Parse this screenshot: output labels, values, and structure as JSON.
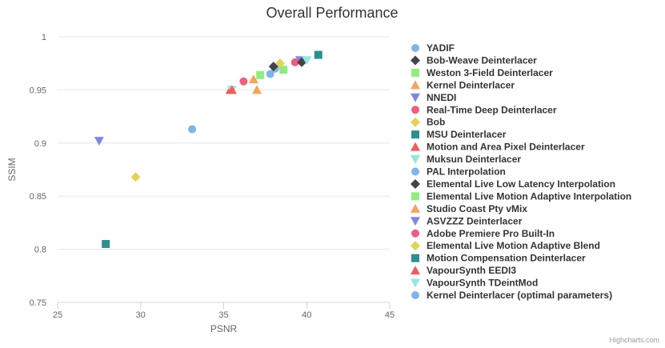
{
  "chart_data": {
    "type": "scatter",
    "title": "Overall Performance",
    "xlabel": "PSNR",
    "ylabel": "SSIM",
    "xlim": [
      25,
      45
    ],
    "ylim": [
      0.75,
      1
    ],
    "x_ticks": [
      "25",
      "30",
      "35",
      "40",
      "45"
    ],
    "y_ticks": [
      "0.75",
      "0.8",
      "0.85",
      "0.9",
      "0.95",
      "1"
    ],
    "grid": "horizontal",
    "legend_position": "right",
    "credits": "Highcharts.com",
    "series": [
      {
        "name": "YADIF",
        "color": "#7cb5ec",
        "symbol": "circle",
        "x": 38.1,
        "y": 0.97
      },
      {
        "name": "Bob-Weave Deinterlacer",
        "color": "#434348",
        "symbol": "diamond",
        "x": 38.0,
        "y": 0.972
      },
      {
        "name": "Weston 3-Field Deinterlacer",
        "color": "#90ed7d",
        "symbol": "square",
        "x": 38.6,
        "y": 0.969
      },
      {
        "name": "Kernel Deinterlacer",
        "color": "#f7a35c",
        "symbol": "triangle",
        "x": 37.0,
        "y": 0.95
      },
      {
        "name": "NNEDI",
        "color": "#8085e9",
        "symbol": "triangle-down",
        "x": 39.6,
        "y": 0.978
      },
      {
        "name": "Real-Time Deep Deinterlacer",
        "color": "#f15c80",
        "symbol": "circle",
        "x": 39.3,
        "y": 0.976
      },
      {
        "name": "Bob",
        "color": "#e4d354",
        "symbol": "diamond",
        "x": 38.4,
        "y": 0.975
      },
      {
        "name": "MSU Deinterlacer",
        "color": "#2b908f",
        "symbol": "square",
        "x": 40.7,
        "y": 0.983
      },
      {
        "name": "Motion and Area Pixel Deinterlacer",
        "color": "#f45b5b",
        "symbol": "triangle",
        "x": 35.4,
        "y": 0.95
      },
      {
        "name": "Muksun Deinterlacer",
        "color": "#91e8e1",
        "symbol": "triangle-down",
        "x": 35.5,
        "y": 0.95
      },
      {
        "name": "PAL Interpolation",
        "color": "#7cb5ec",
        "symbol": "circle",
        "x": 33.1,
        "y": 0.913
      },
      {
        "name": "Elemental Live Low Latency Interpolation",
        "color": "#434348",
        "symbol": "diamond",
        "x": 39.7,
        "y": 0.976
      },
      {
        "name": "Elemental Live Motion Adaptive Interpolation",
        "color": "#90ed7d",
        "symbol": "square",
        "x": 37.2,
        "y": 0.964
      },
      {
        "name": "Studio Coast Pty vMix",
        "color": "#f7a35c",
        "symbol": "triangle",
        "x": 36.8,
        "y": 0.96
      },
      {
        "name": "ASVZZZ Deinterlacer",
        "color": "#8085e9",
        "symbol": "triangle-down",
        "x": 27.5,
        "y": 0.902
      },
      {
        "name": "Adobe Premiere Pro Built-In",
        "color": "#f15c80",
        "symbol": "circle",
        "x": 36.2,
        "y": 0.958
      },
      {
        "name": "Elemental Live Motion Adaptive Blend",
        "color": "#e4d354",
        "symbol": "diamond",
        "x": 29.7,
        "y": 0.868
      },
      {
        "name": "Motion Compensation Deinterlacer",
        "color": "#2b908f",
        "symbol": "square",
        "x": 27.9,
        "y": 0.805
      },
      {
        "name": "VapourSynth EEDI3",
        "color": "#f45b5b",
        "symbol": "triangle",
        "x": 35.5,
        "y": 0.95
      },
      {
        "name": "VapourSynth TDeintMod",
        "color": "#91e8e1",
        "symbol": "triangle-down",
        "x": 40.0,
        "y": 0.978
      },
      {
        "name": "Kernel Deinterlacer (optimal parameters)",
        "color": "#7cb5ec",
        "symbol": "circle",
        "x": 37.8,
        "y": 0.965
      }
    ]
  }
}
